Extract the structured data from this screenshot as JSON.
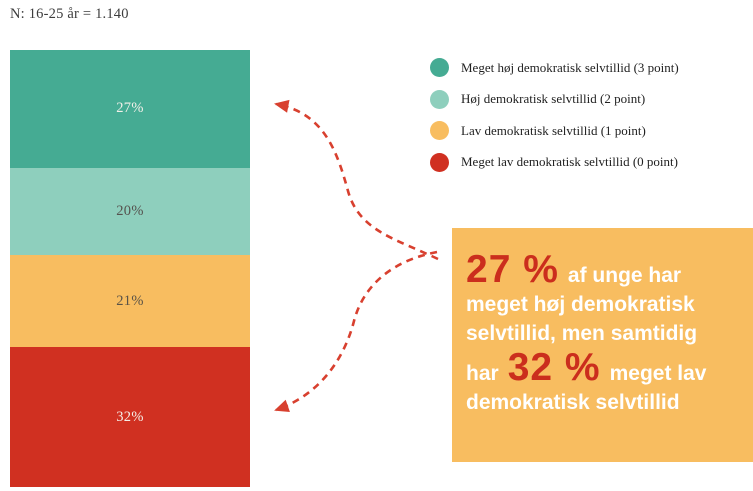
{
  "title": "N: 16-25 år = 1.140",
  "colors": {
    "very_high": "#45ab93",
    "high": "#8ecfbd",
    "low": "#f8bd60",
    "very_low": "#d03021",
    "arrow_red": "#d8402f",
    "callout_background": "#f8bd60",
    "callout_number_red": "#cb2e1d",
    "callout_text_white": "#ffffff"
  },
  "chart_data": {
    "type": "bar",
    "stacked": true,
    "title": "N: 16-25 år = 1.140",
    "categories": [
      "16-25 år"
    ],
    "unit": "%",
    "legend_position": "right",
    "grid": false,
    "series": [
      {
        "name": "Meget høj demokratisk selvtillid (3 point)",
        "values": [
          27
        ],
        "color": "#45ab93",
        "label_color": "#f3f0e9"
      },
      {
        "name": "Høj demokratisk selvtillid (2 point)",
        "values": [
          20
        ],
        "color": "#8ecfbd",
        "label_color": "#55524e"
      },
      {
        "name": "Lav demokratisk selvtillid (1 point)",
        "values": [
          21
        ],
        "color": "#f8bd60",
        "label_color": "#5a5347"
      },
      {
        "name": "Meget lav demokratisk selvtillid (0 point)",
        "values": [
          32
        ],
        "color": "#d03021",
        "label_color": "#f4ede7"
      }
    ]
  },
  "callout": {
    "big1": "27 %",
    "line1_rest": "af unge har",
    "line2": "meget høj demokratisk",
    "line3": "selvtillid, men samtidig",
    "line4_pre": "har",
    "big2": "32 %",
    "line4_rest": "meget lav",
    "line5": "demokratisk selvtillid"
  }
}
